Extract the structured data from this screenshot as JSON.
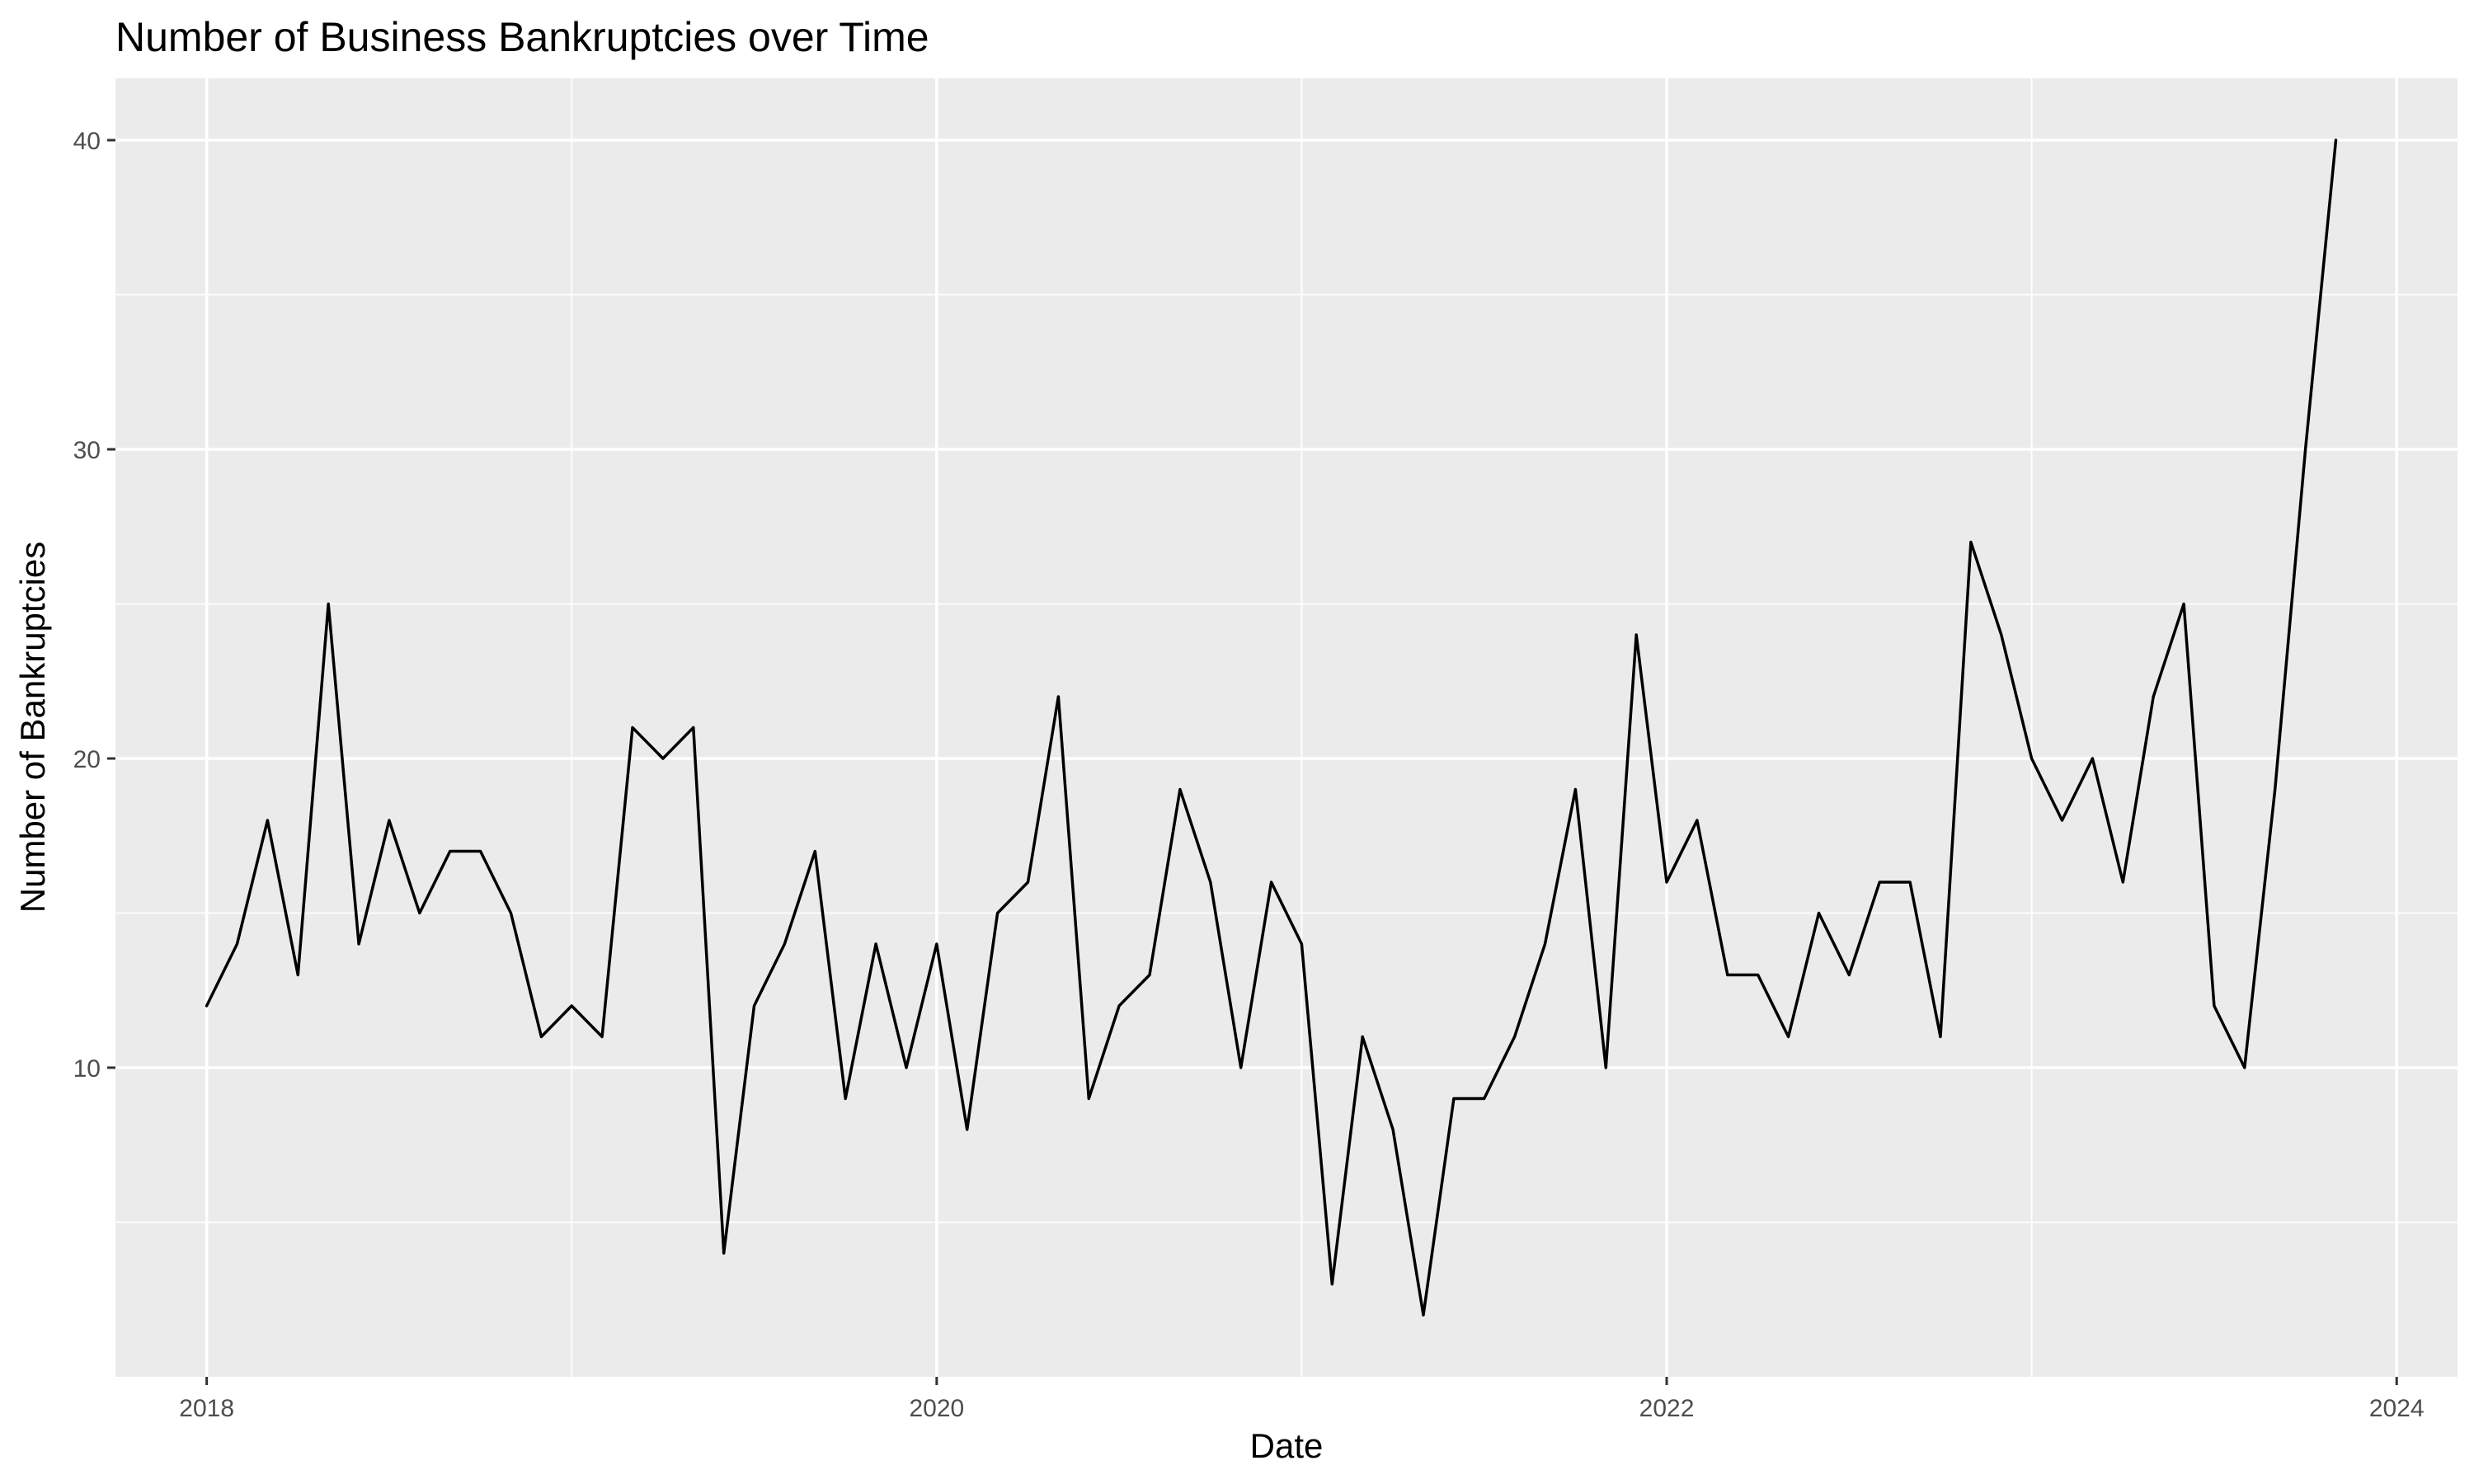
{
  "chart_data": {
    "type": "line",
    "title": "Number of Business Bankruptcies over Time",
    "xlabel": "Date",
    "ylabel": "Number of Bankruptcies",
    "x_tick_labels": [
      "2018",
      "2020",
      "2022",
      "2024"
    ],
    "y_tick_labels": [
      "10",
      "20",
      "30",
      "40"
    ],
    "xlim": [
      "2017-10",
      "2024-03"
    ],
    "ylim": [
      0,
      42
    ],
    "grid": true,
    "legend": "none",
    "colors": {
      "panel": "#ebebeb",
      "grid": "#ffffff",
      "line": "#000000",
      "tick": "#4d4d4d"
    },
    "series": [
      {
        "x": [
          "2018-01",
          "2018-02",
          "2018-03",
          "2018-04",
          "2018-05",
          "2018-06",
          "2018-07",
          "2018-08",
          "2018-09",
          "2018-10",
          "2018-11",
          "2018-12",
          "2019-01",
          "2019-02",
          "2019-03",
          "2019-04",
          "2019-05",
          "2019-06",
          "2019-07",
          "2019-08",
          "2019-09",
          "2019-10",
          "2019-11",
          "2019-12",
          "2020-01",
          "2020-02",
          "2020-03",
          "2020-04",
          "2020-05",
          "2020-06",
          "2020-07",
          "2020-08",
          "2020-09",
          "2020-10",
          "2020-11",
          "2020-12",
          "2021-01",
          "2021-02",
          "2021-03",
          "2021-04",
          "2021-05",
          "2021-06",
          "2021-07",
          "2021-08",
          "2021-09",
          "2021-10",
          "2021-11",
          "2021-12",
          "2022-01",
          "2022-02",
          "2022-03",
          "2022-04",
          "2022-05",
          "2022-06",
          "2022-07",
          "2022-08",
          "2022-09",
          "2022-10",
          "2022-11",
          "2022-12",
          "2023-01",
          "2023-02",
          "2023-03",
          "2023-04",
          "2023-05",
          "2023-06",
          "2023-07",
          "2023-08",
          "2023-09",
          "2023-10",
          "2023-11"
        ],
        "values": [
          12,
          14,
          18,
          13,
          25,
          14,
          18,
          15,
          17,
          17,
          15,
          11,
          12,
          11,
          21,
          20,
          21,
          4,
          12,
          14,
          17,
          9,
          14,
          10,
          14,
          8,
          15,
          16,
          22,
          9,
          12,
          13,
          19,
          16,
          10,
          16,
          14,
          3,
          11,
          8,
          2,
          9,
          9,
          11,
          14,
          19,
          10,
          24,
          16,
          18,
          13,
          13,
          11,
          15,
          13,
          16,
          16,
          11,
          27,
          24,
          20,
          18,
          20,
          16,
          22,
          25,
          12,
          10,
          19,
          30,
          40
        ]
      }
    ]
  }
}
